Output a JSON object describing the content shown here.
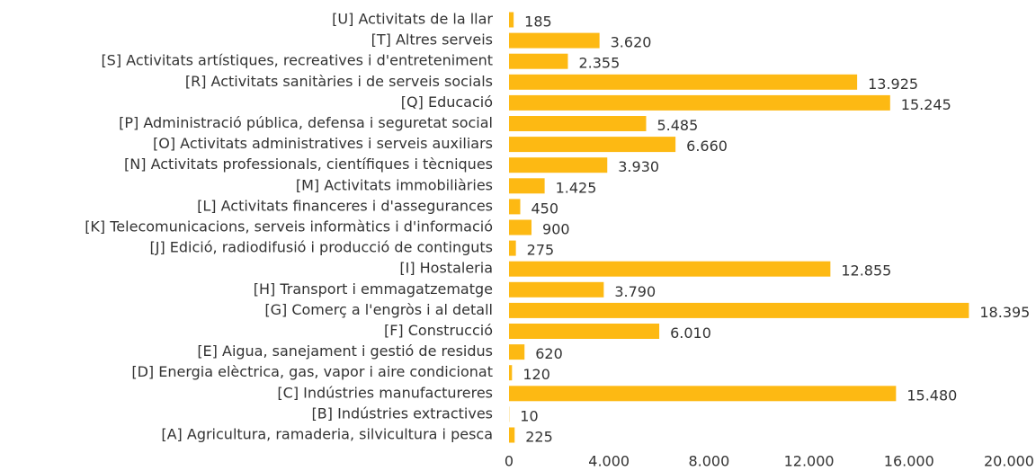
{
  "chart_data": {
    "type": "bar",
    "orientation": "horizontal",
    "categories": [
      "[U] Activitats de la llar",
      "[T] Altres serveis",
      "[S] Activitats artístiques, recreatives i d'entreteniment",
      "[R] Activitats sanitàries i de serveis socials",
      "[Q] Educació",
      "[P] Administració pública, defensa i seguretat social",
      "[O] Activitats administratives i serveis auxiliars",
      "[N] Activitats professionals, científiques i tècniques",
      "[M] Activitats immobiliàries",
      "[L] Activitats financeres i d'assegurances",
      "[K] Telecomunicacions, serveis informàtics i d'informació",
      "[J] Edició, radiodifusió i producció de continguts",
      "[I] Hostaleria",
      "[H] Transport i emmagatzematge",
      "[G] Comerç a l'engròs i al detall",
      "[F] Construcció",
      "[E] Aigua, sanejament i gestió de residus",
      "[D] Energia elèctrica, gas, vapor i aire condicionat",
      "[C] Indústries manufactureres",
      "[B] Indústries extractives",
      "[A] Agricultura, ramaderia, silvicultura i pesca"
    ],
    "values": [
      185,
      3620,
      2355,
      13925,
      15245,
      5485,
      6660,
      3930,
      1425,
      450,
      900,
      275,
      12855,
      3790,
      18395,
      6010,
      620,
      120,
      15480,
      10,
      225
    ],
    "value_labels": [
      "185",
      "3.620",
      "2.355",
      "13.925",
      "15.245",
      "5.485",
      "6.660",
      "3.930",
      "1.425",
      "450",
      "900",
      "275",
      "12.855",
      "3.790",
      "18.395",
      "6.010",
      "620",
      "120",
      "15.480",
      "10",
      "225"
    ],
    "color": "#fdb913",
    "xlim": [
      0,
      20000
    ],
    "xticks": [
      0,
      {
        "value": 4000,
        "label": "4.000"
      },
      {
        "value": 8000,
        "label": "8.000"
      },
      {
        "value": 12000,
        "label": "12.000"
      },
      {
        "value": 16000,
        "label": "16.000"
      },
      {
        "value": 20000,
        "label": "20.000"
      }
    ],
    "grid": false
  }
}
